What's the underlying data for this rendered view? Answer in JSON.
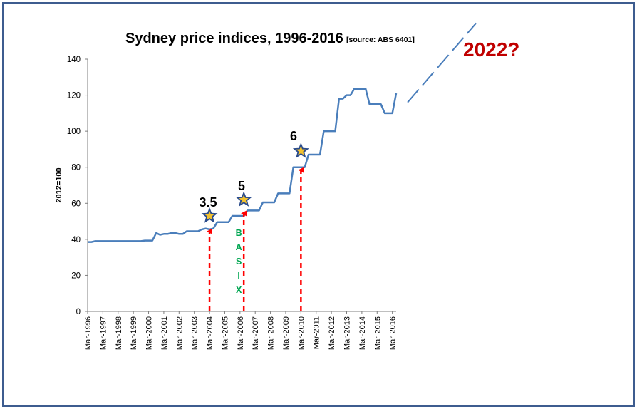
{
  "chart_data": {
    "type": "line",
    "title": "Sydney price indices, 1996-2016",
    "source_note": "[source: ABS 6401]",
    "ylabel": "2012=100",
    "xlabel": "",
    "ylim": [
      0,
      140
    ],
    "yticks": [
      0,
      20,
      40,
      60,
      80,
      100,
      120,
      140
    ],
    "grid": false,
    "legend": "none",
    "x_start": "Mar-1996",
    "x_end": "Mar-2016",
    "xticks": [
      "Mar-1996",
      "Mar-1997",
      "Mar-1998",
      "Mar-1999",
      "Mar-2000",
      "Mar-2001",
      "Mar-2002",
      "Mar-2003",
      "Mar-2004",
      "Mar-2005",
      "Mar-2006",
      "Mar-2007",
      "Mar-2008",
      "Mar-2009",
      "Mar-2010",
      "Mar-2011",
      "Mar-2012",
      "Mar-2013",
      "Mar-2014",
      "Mar-2015",
      "Mar-2016"
    ],
    "series": [
      {
        "color": "#4a7ebb",
        "points": [
          [
            "Mar-1996",
            38.5
          ],
          [
            "Jun-1996",
            38.5
          ],
          [
            "Sep-1996",
            39
          ],
          [
            "Dec-1996",
            39
          ],
          [
            "Mar-1997",
            39
          ],
          [
            "Jun-1997",
            39
          ],
          [
            "Sep-1997",
            39
          ],
          [
            "Dec-1997",
            39
          ],
          [
            "Mar-1998",
            39
          ],
          [
            "Jun-1998",
            39
          ],
          [
            "Sep-1998",
            39
          ],
          [
            "Dec-1998",
            39
          ],
          [
            "Mar-1999",
            39
          ],
          [
            "Jun-1999",
            39
          ],
          [
            "Sep-1999",
            39
          ],
          [
            "Dec-1999",
            39.3
          ],
          [
            "Mar-2000",
            39.3
          ],
          [
            "Jun-2000",
            39.3
          ],
          [
            "Sep-2000",
            43.5
          ],
          [
            "Dec-2000",
            42.5
          ],
          [
            "Mar-2001",
            43
          ],
          [
            "Jun-2001",
            43
          ],
          [
            "Sep-2001",
            43.5
          ],
          [
            "Dec-2001",
            43.5
          ],
          [
            "Mar-2002",
            43
          ],
          [
            "Jun-2002",
            43
          ],
          [
            "Sep-2002",
            44.5
          ],
          [
            "Dec-2002",
            44.5
          ],
          [
            "Mar-2003",
            44.5
          ],
          [
            "Jun-2003",
            44.5
          ],
          [
            "Sep-2003",
            45.5
          ],
          [
            "Dec-2003",
            46
          ],
          [
            "Mar-2004",
            45.5
          ],
          [
            "Jun-2004",
            46
          ],
          [
            "Sep-2004",
            49.5
          ],
          [
            "Dec-2004",
            49.5
          ],
          [
            "Mar-2005",
            49.5
          ],
          [
            "Jun-2005",
            49.5
          ],
          [
            "Sep-2005",
            53
          ],
          [
            "Dec-2005",
            53
          ],
          [
            "Mar-2006",
            53
          ],
          [
            "Jun-2006",
            53
          ],
          [
            "Sep-2006",
            56
          ],
          [
            "Dec-2006",
            56
          ],
          [
            "Mar-2007",
            56
          ],
          [
            "Jun-2007",
            56
          ],
          [
            "Sep-2007",
            60.5
          ],
          [
            "Dec-2007",
            60.5
          ],
          [
            "Mar-2008",
            60.5
          ],
          [
            "Jun-2008",
            60.5
          ],
          [
            "Sep-2008",
            65.5
          ],
          [
            "Dec-2008",
            65.5
          ],
          [
            "Mar-2009",
            65.5
          ],
          [
            "Jun-2009",
            65.5
          ],
          [
            "Sep-2009",
            80
          ],
          [
            "Dec-2009",
            80
          ],
          [
            "Mar-2010",
            80
          ],
          [
            "Jun-2010",
            80
          ],
          [
            "Sep-2010",
            87
          ],
          [
            "Dec-2010",
            87
          ],
          [
            "Mar-2011",
            87
          ],
          [
            "Jun-2011",
            87
          ],
          [
            "Sep-2011",
            100
          ],
          [
            "Dec-2011",
            100
          ],
          [
            "Mar-2012",
            100
          ],
          [
            "Jun-2012",
            100
          ],
          [
            "Sep-2012",
            118
          ],
          [
            "Dec-2012",
            118
          ],
          [
            "Mar-2013",
            120
          ],
          [
            "Jun-2013",
            120
          ],
          [
            "Sep-2013",
            123.5
          ],
          [
            "Dec-2013",
            123.5
          ],
          [
            "Mar-2014",
            123.5
          ],
          [
            "Jun-2014",
            123.5
          ],
          [
            "Sep-2014",
            115
          ],
          [
            "Dec-2014",
            115
          ],
          [
            "Mar-2015",
            115
          ],
          [
            "Jun-2015",
            115
          ],
          [
            "Sep-2015",
            110
          ],
          [
            "Dec-2015",
            110
          ],
          [
            "Mar-2016",
            110
          ],
          [
            "Jun-2016",
            121
          ]
        ]
      }
    ],
    "annotations": [
      {
        "label": "3.5",
        "date": "Mar-2004",
        "star_value": 53,
        "arrow_tip_value": 46
      },
      {
        "label": "5",
        "date": "Jun-2006",
        "star_value": 62,
        "arrow_tip_value": 56
      },
      {
        "label": "6",
        "date": "Mar-2010",
        "star_value": 89,
        "arrow_tip_value": 80
      }
    ],
    "vertical_text": [
      "B",
      "A",
      "S",
      "I",
      "X"
    ],
    "projection": {
      "label": "2022?",
      "from": [
        "Mar-2017",
        116
      ],
      "to": [
        "Sep-2021",
        160
      ]
    },
    "colors": {
      "line": "#4a7ebb",
      "arrow": "#ff0000",
      "star_fill": "#f2c12e",
      "star_edge": "#2b4c8c",
      "basix": "#00a651",
      "projection_label": "#c00000",
      "frame": "#3d5c8f"
    }
  }
}
